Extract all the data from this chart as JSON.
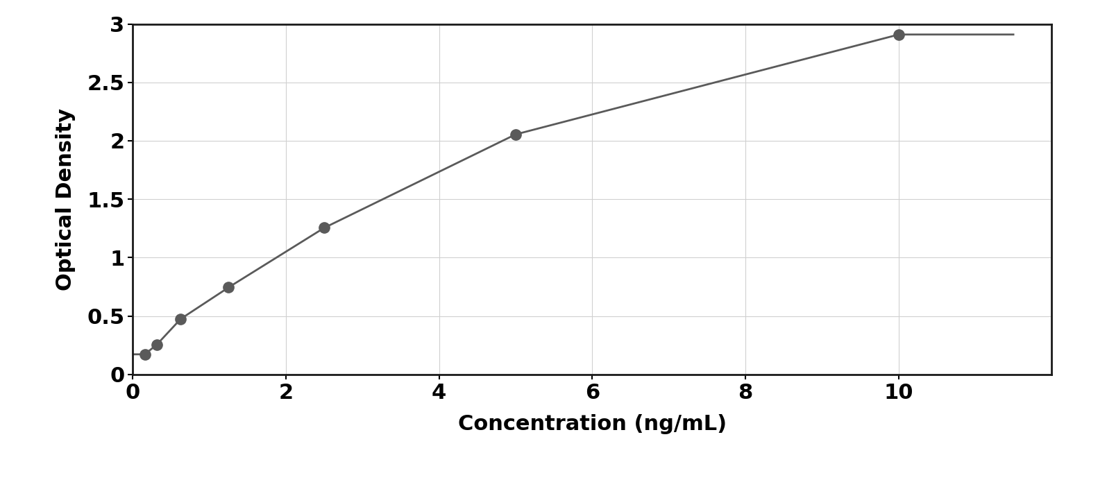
{
  "x_data": [
    0.156,
    0.313,
    0.625,
    1.25,
    2.5,
    5.0,
    10.0
  ],
  "y_data": [
    0.172,
    0.255,
    0.475,
    0.745,
    1.255,
    2.055,
    2.91
  ],
  "point_color": "#5a5a5a",
  "line_color": "#5a5a5a",
  "xlabel": "Concentration (ng/mL)",
  "ylabel": "Optical Density",
  "xlim": [
    0,
    12
  ],
  "ylim": [
    0,
    3
  ],
  "xticks": [
    0,
    2,
    4,
    6,
    8,
    10
  ],
  "yticks": [
    0,
    0.5,
    1.0,
    1.5,
    2.0,
    2.5,
    3.0
  ],
  "grid_color": "#d0d0d0",
  "background_color": "#ffffff",
  "border_color": "#1a1a1a",
  "marker_size": 11,
  "line_width": 2.0,
  "xlabel_fontsize": 22,
  "ylabel_fontsize": 22,
  "tick_fontsize": 22,
  "xlabel_fontweight": "bold",
  "ylabel_fontweight": "bold",
  "tick_fontweight": "bold"
}
